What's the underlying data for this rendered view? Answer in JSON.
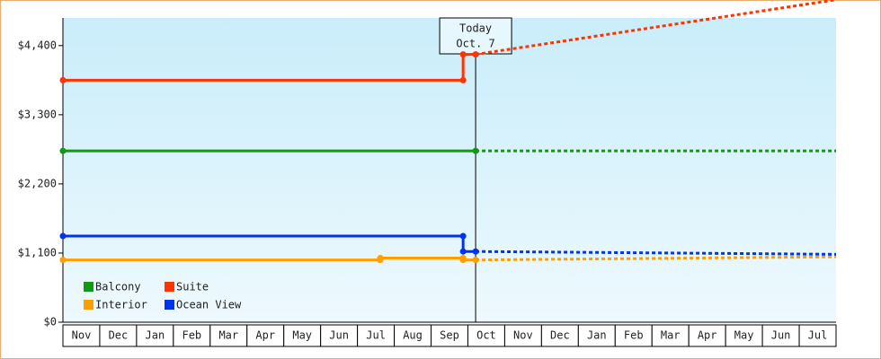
{
  "chart_data": {
    "type": "line",
    "categories": [
      "Nov",
      "Dec",
      "Jan",
      "Feb",
      "Mar",
      "Apr",
      "May",
      "Jun",
      "Jul",
      "Aug",
      "Sep",
      "Oct",
      "Nov",
      "Dec",
      "Jan",
      "Feb",
      "Mar",
      "Apr",
      "May",
      "Jun",
      "Jul"
    ],
    "ylim": [
      0,
      4840
    ],
    "yticks": [
      {
        "value": 0,
        "label": "$0"
      },
      {
        "value": 1100,
        "label": "$1,100"
      },
      {
        "value": 2200,
        "label": "$2,200"
      },
      {
        "value": 3300,
        "label": "$3,300"
      },
      {
        "value": 4400,
        "label": "$4,400"
      }
    ],
    "annotation": {
      "text": [
        "Today",
        "Oct. 7"
      ],
      "x": 11.21
    },
    "series": [
      {
        "name": "Balcony",
        "color": "#119911",
        "x": [
          0,
          11.21,
          21
        ],
        "values": [
          2725,
          2725,
          2725
        ]
      },
      {
        "name": "Suite",
        "color": "#ff3300",
        "x": [
          0,
          10.87,
          10.87,
          11.21,
          21
        ],
        "values": [
          3850,
          3850,
          4260,
          4260,
          5130
        ]
      },
      {
        "name": "Interior",
        "color": "#ff9e00",
        "x": [
          0,
          8.62,
          8.62,
          10.87,
          10.87,
          11.21,
          21
        ],
        "values": [
          990,
          990,
          1020,
          1020,
          990,
          990,
          1040
        ]
      },
      {
        "name": "Ocean View",
        "color": "#0033ee",
        "x": [
          0,
          10.87,
          10.87,
          11.21,
          21
        ],
        "values": [
          1370,
          1370,
          1125,
          1125,
          1080
        ]
      }
    ]
  }
}
